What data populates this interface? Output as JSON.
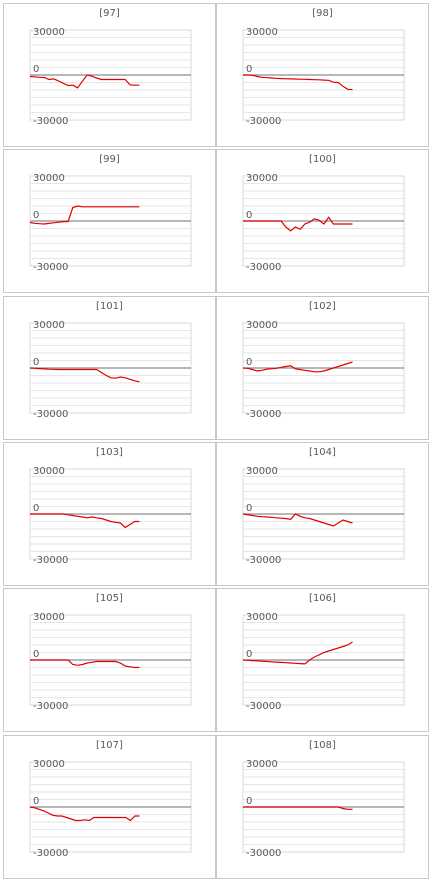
{
  "chart_data": [
    {
      "type": "line",
      "title": "[97]",
      "ylim": [
        -30000,
        30000
      ],
      "yticks": [
        "30000",
        "0",
        "-30000"
      ],
      "line_color": "#e00000",
      "x": [
        0,
        1,
        2,
        3,
        4,
        5,
        6,
        7,
        8,
        9,
        10,
        11,
        12,
        13,
        14,
        15,
        16,
        17,
        18,
        19,
        20,
        21,
        22,
        23
      ],
      "values": [
        -1000,
        -1200,
        -1500,
        -1700,
        -3000,
        -2600,
        -4000,
        -5500,
        -7000,
        -6800,
        -8500,
        -4200,
        0,
        -800,
        -2000,
        -3000,
        -3000,
        -3000,
        -3000,
        -3000,
        -3000,
        -6500,
        -6800,
        -6800
      ]
    },
    {
      "type": "line",
      "title": "[98]",
      "ylim": [
        -30000,
        30000
      ],
      "yticks": [
        "30000",
        "0",
        "-30000"
      ],
      "line_color": "#e00000",
      "x": [
        0,
        1,
        2,
        3,
        4,
        5,
        6,
        7,
        8,
        9,
        10,
        11,
        12,
        13,
        14,
        15,
        16,
        17,
        18,
        19,
        20,
        21,
        22,
        23
      ],
      "values": [
        0,
        0,
        -200,
        -1000,
        -1500,
        -1800,
        -2000,
        -2200,
        -2400,
        -2500,
        -2600,
        -2700,
        -2800,
        -2900,
        -3000,
        -3100,
        -3200,
        -3400,
        -3500,
        -4800,
        -5000,
        -7500,
        -9500,
        -9800
      ]
    },
    {
      "type": "line",
      "title": "[99]",
      "ylim": [
        -30000,
        30000
      ],
      "yticks": [
        "30000",
        "0",
        "-30000"
      ],
      "line_color": "#e00000",
      "x": [
        0,
        1,
        2,
        3,
        4,
        5,
        6,
        7,
        8,
        9,
        10,
        11,
        12,
        13,
        14,
        15,
        16,
        17,
        18,
        19,
        20,
        21,
        22,
        23
      ],
      "values": [
        -1000,
        -1500,
        -1800,
        -2000,
        -1600,
        -1200,
        -800,
        -500,
        -300,
        9000,
        10000,
        9500,
        9500,
        9500,
        9500,
        9500,
        9500,
        9500,
        9500,
        9500,
        9500,
        9500,
        9500,
        9500
      ]
    },
    {
      "type": "line",
      "title": "[100]",
      "ylim": [
        -30000,
        30000
      ],
      "yticks": [
        "30000",
        "0",
        "-30000"
      ],
      "line_color": "#e00000",
      "x": [
        0,
        1,
        2,
        3,
        4,
        5,
        6,
        7,
        8,
        9,
        10,
        11,
        12,
        13,
        14,
        15,
        16,
        17,
        18,
        19,
        20,
        21,
        22,
        23
      ],
      "values": [
        0,
        0,
        0,
        0,
        0,
        0,
        0,
        0,
        0,
        -4000,
        -6500,
        -4000,
        -5500,
        -2000,
        -800,
        1500,
        500,
        -2000,
        2500,
        -2000,
        -2000,
        -2000,
        -2000,
        -2000
      ]
    },
    {
      "type": "line",
      "title": "[101]",
      "ylim": [
        -30000,
        30000
      ],
      "yticks": [
        "30000",
        "0",
        "-30000"
      ],
      "line_color": "#e00000",
      "x": [
        0,
        1,
        2,
        3,
        4,
        5,
        6,
        7,
        8,
        9,
        10,
        11,
        12,
        13,
        14,
        15,
        16,
        17,
        18,
        19,
        20,
        21,
        22,
        23
      ],
      "values": [
        0,
        -200,
        -400,
        -600,
        -800,
        -900,
        -1000,
        -1000,
        -1000,
        -1000,
        -1000,
        -1000,
        -1000,
        -1000,
        -1000,
        -3000,
        -5000,
        -6500,
        -6800,
        -6000,
        -6500,
        -7500,
        -8500,
        -9200
      ]
    },
    {
      "type": "line",
      "title": "[102]",
      "ylim": [
        -30000,
        30000
      ],
      "yticks": [
        "30000",
        "0",
        "-30000"
      ],
      "line_color": "#e00000",
      "x": [
        0,
        1,
        2,
        3,
        4,
        5,
        6,
        7,
        8,
        9,
        10,
        11,
        12,
        13,
        14,
        15,
        16,
        17,
        18,
        19,
        20,
        21,
        22,
        23
      ],
      "values": [
        0,
        -200,
        -1000,
        -2000,
        -1500,
        -800,
        -500,
        -200,
        500,
        1000,
        1500,
        -500,
        -1000,
        -1500,
        -2000,
        -2500,
        -2500,
        -2000,
        -1000,
        0,
        1000,
        2000,
        3000,
        4000
      ]
    },
    {
      "type": "line",
      "title": "[103]",
      "ylim": [
        -30000,
        30000
      ],
      "yticks": [
        "30000",
        "0",
        "-30000"
      ],
      "line_color": "#e00000",
      "x": [
        0,
        1,
        2,
        3,
        4,
        5,
        6,
        7,
        8,
        9,
        10,
        11,
        12,
        13,
        14,
        15,
        16,
        17,
        18,
        19,
        20,
        21,
        22,
        23
      ],
      "values": [
        0,
        0,
        0,
        0,
        0,
        0,
        0,
        0,
        -500,
        -1000,
        -1500,
        -2000,
        -2500,
        -2000,
        -2500,
        -3000,
        -4000,
        -5000,
        -5500,
        -6000,
        -9000,
        -7000,
        -5000,
        -5000
      ]
    },
    {
      "type": "line",
      "title": "[104]",
      "ylim": [
        -30000,
        30000
      ],
      "yticks": [
        "30000",
        "0",
        "-30000"
      ],
      "line_color": "#e00000",
      "x": [
        0,
        1,
        2,
        3,
        4,
        5,
        6,
        7,
        8,
        9,
        10,
        11,
        12,
        13,
        14,
        15,
        16,
        17,
        18,
        19,
        20,
        21,
        22,
        23
      ],
      "values": [
        0,
        -500,
        -1000,
        -1500,
        -1800,
        -2000,
        -2200,
        -2500,
        -2800,
        -3000,
        -3500,
        0,
        -1500,
        -2500,
        -3000,
        -4000,
        -5000,
        -6000,
        -7000,
        -8000,
        -6000,
        -4000,
        -5000,
        -6000
      ]
    },
    {
      "type": "line",
      "title": "[105]",
      "ylim": [
        -30000,
        30000
      ],
      "yticks": [
        "30000",
        "0",
        "-30000"
      ],
      "line_color": "#e00000",
      "x": [
        0,
        1,
        2,
        3,
        4,
        5,
        6,
        7,
        8,
        9,
        10,
        11,
        12,
        13,
        14,
        15,
        16,
        17,
        18,
        19,
        20,
        21,
        22,
        23
      ],
      "values": [
        0,
        0,
        0,
        0,
        0,
        0,
        0,
        0,
        0,
        -3000,
        -3500,
        -3000,
        -2000,
        -1500,
        -1000,
        -1000,
        -1000,
        -1000,
        -1000,
        -2000,
        -4000,
        -4500,
        -5000,
        -5000
      ]
    },
    {
      "type": "line",
      "title": "[106]",
      "ylim": [
        -30000,
        30000
      ],
      "yticks": [
        "30000",
        "0",
        "-30000"
      ],
      "line_color": "#e00000",
      "x": [
        0,
        1,
        2,
        3,
        4,
        5,
        6,
        7,
        8,
        9,
        10,
        11,
        12,
        13,
        14,
        15,
        16,
        17,
        18,
        19,
        20,
        21,
        22,
        23
      ],
      "values": [
        0,
        -200,
        -400,
        -600,
        -800,
        -1000,
        -1200,
        -1400,
        -1600,
        -1800,
        -2000,
        -2200,
        -2400,
        -2600,
        0,
        2000,
        3500,
        5000,
        6000,
        7000,
        8000,
        9000,
        10000,
        12000
      ]
    },
    {
      "type": "line",
      "title": "[107]",
      "ylim": [
        -30000,
        30000
      ],
      "yticks": [
        "30000",
        "0",
        "-30000"
      ],
      "line_color": "#e00000",
      "x": [
        0,
        1,
        2,
        3,
        4,
        5,
        6,
        7,
        8,
        9,
        10,
        11,
        12,
        13,
        14,
        15,
        16,
        17,
        18,
        19,
        20,
        21,
        22,
        23,
        24
      ],
      "values": [
        0,
        -500,
        -1500,
        -2500,
        -4000,
        -5500,
        -6000,
        -6000,
        -7000,
        -8000,
        -9000,
        -9000,
        -8500,
        -9000,
        -7000,
        -7000,
        -7000,
        -7000,
        -7000,
        -7000,
        -7000,
        -7000,
        -9000,
        -6000,
        -6000
      ]
    },
    {
      "type": "line",
      "title": "[108]",
      "ylim": [
        -30000,
        30000
      ],
      "yticks": [
        "30000",
        "0",
        "-30000"
      ],
      "line_color": "#e00000",
      "x": [
        0,
        1,
        2,
        3,
        4,
        5,
        6,
        7,
        8,
        9,
        10,
        11,
        12,
        13,
        14,
        15,
        16,
        17,
        18,
        19,
        20,
        21,
        22,
        23
      ],
      "values": [
        0,
        0,
        0,
        0,
        0,
        0,
        0,
        0,
        0,
        0,
        0,
        0,
        0,
        0,
        0,
        0,
        0,
        0,
        0,
        0,
        0,
        -1000,
        -1500,
        -1500
      ]
    }
  ]
}
